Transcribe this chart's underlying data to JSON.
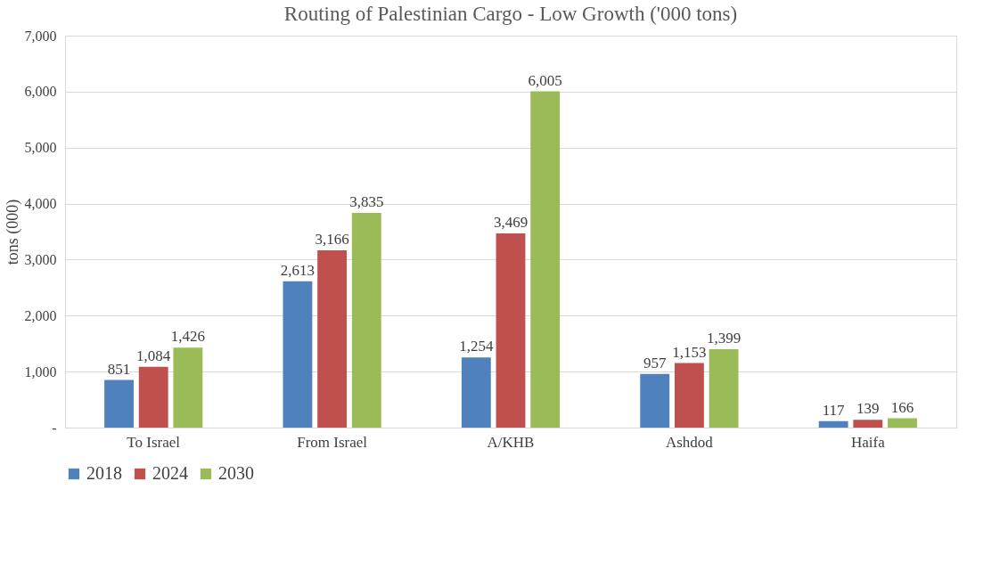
{
  "chart_data": {
    "type": "bar",
    "title": "Routing of Palestinian Cargo - Low Growth ('000 tons)",
    "ylabel": "tons (000)",
    "categories": [
      "To Israel",
      "From Israel",
      "A/KHB",
      "Ashdod",
      "Haifa"
    ],
    "series": [
      {
        "name": "2018",
        "color": "#4f81bd",
        "values": [
          851,
          2613,
          1254,
          957,
          117
        ],
        "value_labels": [
          "851",
          "2,613",
          "1,254",
          "957",
          "117"
        ]
      },
      {
        "name": "2024",
        "color": "#c0504d",
        "values": [
          1084,
          3166,
          3469,
          1153,
          139
        ],
        "value_labels": [
          "1,084",
          "3,166",
          "3,469",
          "1,153",
          "139"
        ]
      },
      {
        "name": "2030",
        "color": "#9bbb59",
        "values": [
          1426,
          3835,
          6005,
          1399,
          166
        ],
        "value_labels": [
          "1,426",
          "3,835",
          "6,005",
          "1,399",
          "166"
        ]
      }
    ],
    "ylim": [
      0,
      7000
    ],
    "yticks": [
      {
        "value": 0,
        "label": "-"
      },
      {
        "value": 1000,
        "label": "1,000"
      },
      {
        "value": 2000,
        "label": "2,000"
      },
      {
        "value": 3000,
        "label": "3,000"
      },
      {
        "value": 4000,
        "label": "4,000"
      },
      {
        "value": 5000,
        "label": "5,000"
      },
      {
        "value": 6000,
        "label": "6,000"
      },
      {
        "value": 7000,
        "label": "7,000"
      }
    ],
    "grid": "y",
    "legend": "bottom"
  }
}
